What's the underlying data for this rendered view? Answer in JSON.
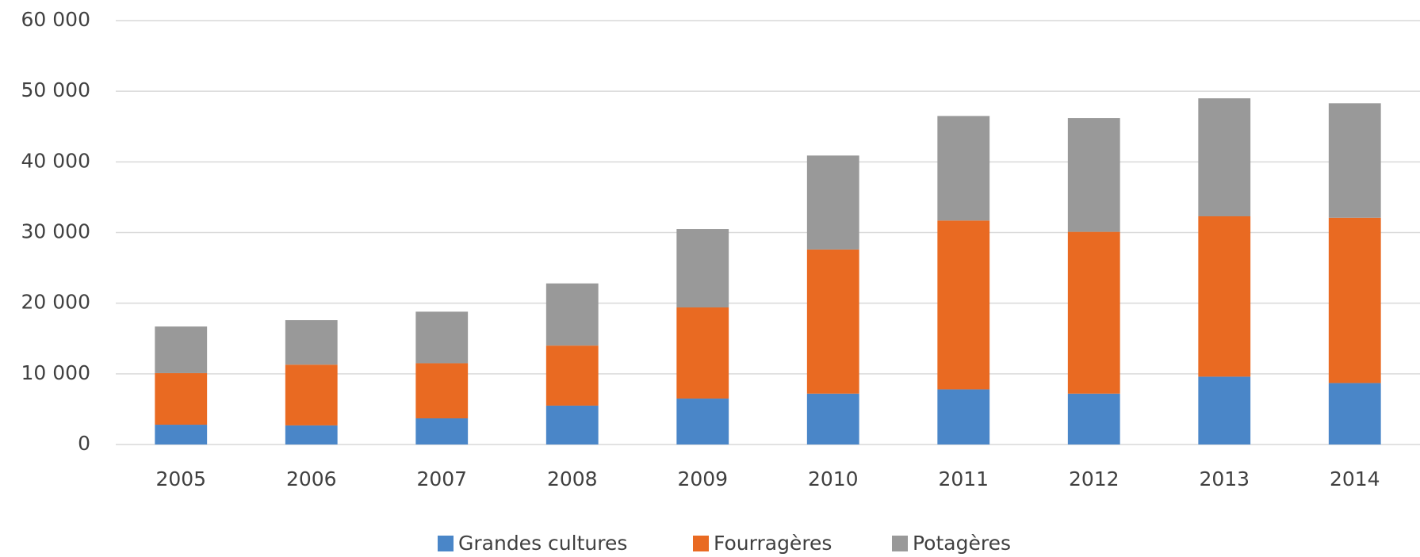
{
  "chart_data": {
    "type": "stacked_bar",
    "categories": [
      "2005",
      "2006",
      "2007",
      "2008",
      "2009",
      "2010",
      "2011",
      "2012",
      "2013",
      "2014"
    ],
    "series": [
      {
        "name": "Grandes cultures",
        "color": "#4a86c8",
        "values": [
          2800,
          2700,
          3700,
          5500,
          6500,
          7200,
          7800,
          7200,
          9600,
          8700
        ]
      },
      {
        "name": "Fourragères",
        "color": "#e96a22",
        "values": [
          7300,
          8600,
          7800,
          8500,
          12900,
          20400,
          23900,
          22900,
          22700,
          23400
        ]
      },
      {
        "name": "Potagères",
        "color": "#999999",
        "values": [
          6600,
          6300,
          7300,
          8800,
          11100,
          13300,
          14800,
          16100,
          16700,
          16200
        ]
      }
    ],
    "ylim": [
      0,
      60000
    ],
    "yticks": [
      0,
      {
        "value": 10000,
        "label": "10 000"
      },
      {
        "value": 20000,
        "label": "20 000"
      },
      {
        "value": 30000,
        "label": "30 000"
      },
      {
        "value": 40000,
        "label": "40 000"
      },
      {
        "value": 50000,
        "label": "50 000"
      },
      {
        "value": 60000,
        "label": "60 000"
      }
    ],
    "grid": true,
    "legend": "bottom"
  }
}
